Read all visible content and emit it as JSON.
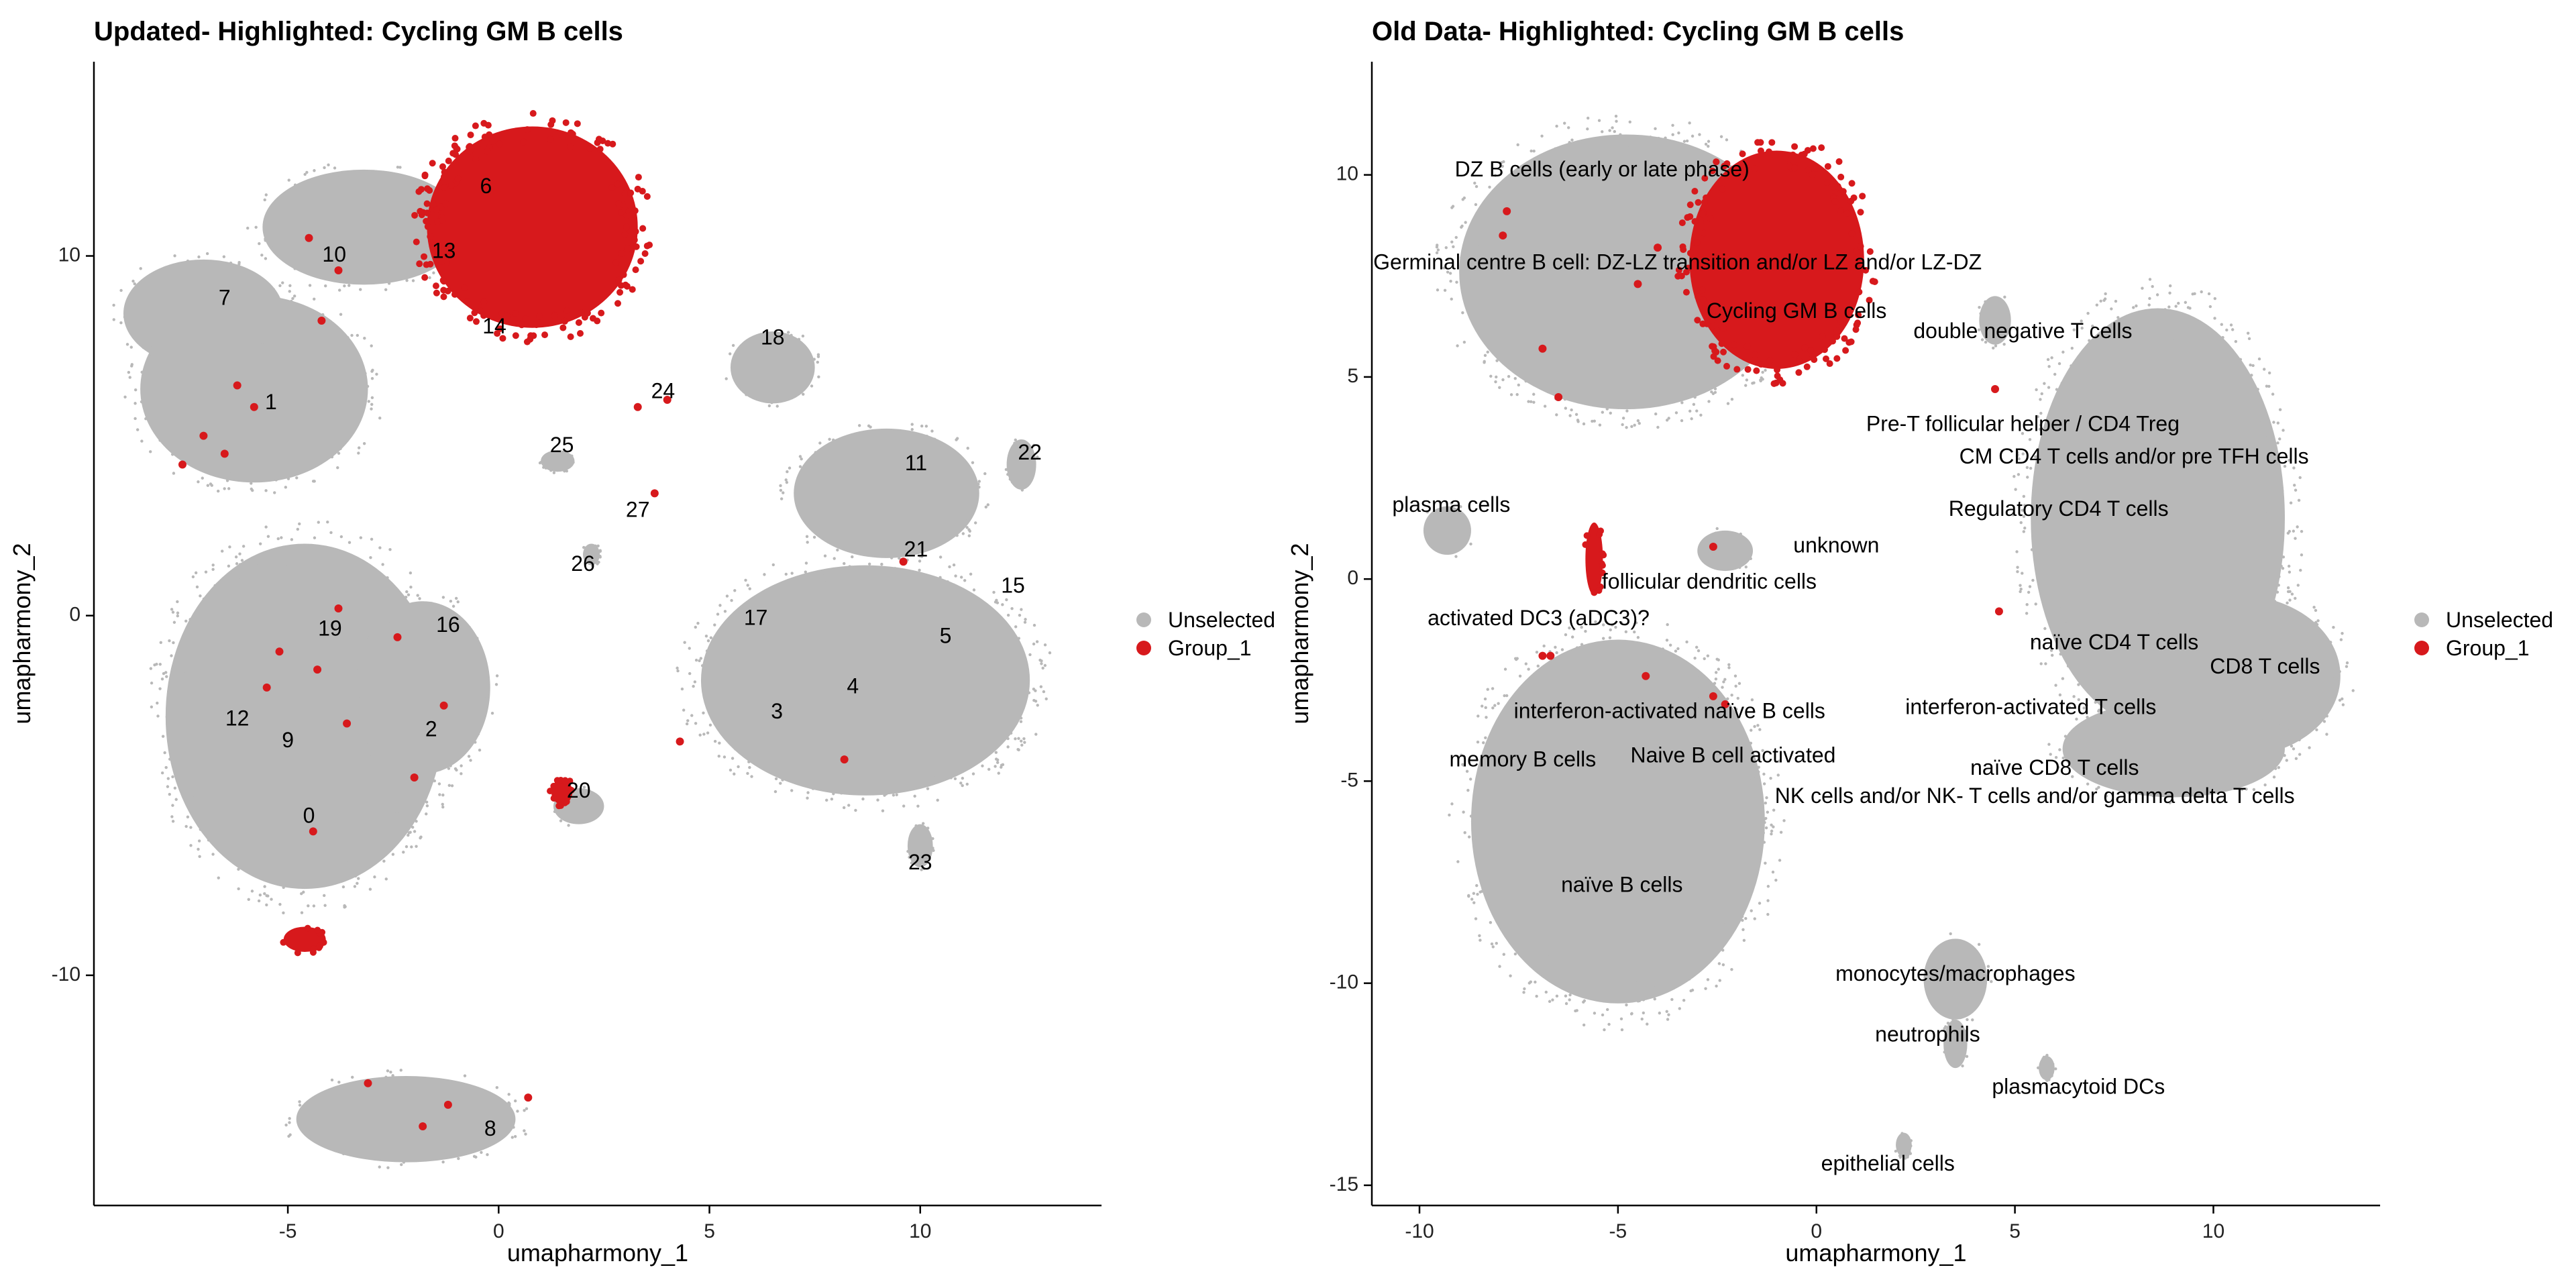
{
  "colors": {
    "unselected": "#b8b8b8",
    "group": "#d7191c",
    "axis": "#000000",
    "text": "#000000"
  },
  "legend_position": "right",
  "chart_data": [
    {
      "type": "scatter",
      "title": "Updated- Highlighted: Cycling GM B cells",
      "xlabel": "umapharmony_1",
      "ylabel": "umapharmony_2",
      "xlim": [
        -9.6,
        14.3
      ],
      "ylim": [
        -16.4,
        15.4
      ],
      "xticks": [
        -5,
        0,
        5,
        10
      ],
      "yticks": [
        -10,
        0,
        10
      ],
      "grid": false,
      "legend": [
        "Unselected",
        "Group_1"
      ],
      "clusters": [
        {
          "x": -5.8,
          "y": 6.3,
          "rx": 2.7,
          "ry": 2.6,
          "selected": false
        },
        {
          "x": -7.0,
          "y": 8.4,
          "rx": 1.9,
          "ry": 1.5,
          "selected": false
        },
        {
          "x": -3.2,
          "y": 10.8,
          "rx": 2.4,
          "ry": 1.6,
          "selected": false
        },
        {
          "x": -4.6,
          "y": -2.8,
          "rx": 3.3,
          "ry": 4.8,
          "selected": false
        },
        {
          "x": -1.8,
          "y": -2.0,
          "rx": 1.6,
          "ry": 2.4,
          "selected": false
        },
        {
          "x": -2.2,
          "y": -14.0,
          "rx": 2.6,
          "ry": 1.2,
          "selected": false
        },
        {
          "x": 8.7,
          "y": -1.8,
          "rx": 3.9,
          "ry": 3.2,
          "selected": false
        },
        {
          "x": 9.2,
          "y": 3.4,
          "rx": 2.2,
          "ry": 1.8,
          "selected": false
        },
        {
          "x": 6.5,
          "y": 6.9,
          "rx": 1.0,
          "ry": 1.0,
          "selected": false
        },
        {
          "x": 12.4,
          "y": 4.2,
          "rx": 0.35,
          "ry": 0.7,
          "selected": false
        },
        {
          "x": 10.0,
          "y": -6.4,
          "rx": 0.3,
          "ry": 0.6,
          "selected": false
        },
        {
          "x": 1.9,
          "y": -5.3,
          "rx": 0.6,
          "ry": 0.5,
          "selected": false
        },
        {
          "x": 1.4,
          "y": 4.3,
          "rx": 0.4,
          "ry": 0.3,
          "selected": false
        },
        {
          "x": 2.2,
          "y": 1.7,
          "rx": 0.2,
          "ry": 0.3,
          "selected": false
        },
        {
          "x": 0.8,
          "y": 10.8,
          "rx": 2.5,
          "ry": 2.8,
          "selected": true
        },
        {
          "x": -4.6,
          "y": -9.0,
          "rx": 0.5,
          "ry": 0.35,
          "selected": true
        },
        {
          "x": 1.5,
          "y": -4.9,
          "rx": 0.25,
          "ry": 0.35,
          "selected": true
        }
      ],
      "labels": [
        {
          "text": "0",
          "x": -4.5,
          "y": -5.6
        },
        {
          "text": "1",
          "x": -5.4,
          "y": 5.9
        },
        {
          "text": "2",
          "x": -1.6,
          "y": -3.2
        },
        {
          "text": "3",
          "x": 6.6,
          "y": -2.7
        },
        {
          "text": "4",
          "x": 8.4,
          "y": -2.0
        },
        {
          "text": "5",
          "x": 10.6,
          "y": -0.6
        },
        {
          "text": "6",
          "x": -0.3,
          "y": 11.9
        },
        {
          "text": "7",
          "x": -6.5,
          "y": 8.8
        },
        {
          "text": "8",
          "x": -0.2,
          "y": -14.3
        },
        {
          "text": "9",
          "x": -5.0,
          "y": -3.5
        },
        {
          "text": "10",
          "x": -3.9,
          "y": 10.0
        },
        {
          "text": "12",
          "x": -6.2,
          "y": -2.9
        },
        {
          "text": "11",
          "x": 9.9,
          "y": 4.2
        },
        {
          "text": "13",
          "x": -1.3,
          "y": 10.1
        },
        {
          "text": "14",
          "x": -0.1,
          "y": 8.0
        },
        {
          "text": "15",
          "x": 12.2,
          "y": 0.8
        },
        {
          "text": "16",
          "x": -1.2,
          "y": -0.3
        },
        {
          "text": "17",
          "x": 6.1,
          "y": -0.1
        },
        {
          "text": "18",
          "x": 6.5,
          "y": 7.7
        },
        {
          "text": "19",
          "x": -4.0,
          "y": -0.4
        },
        {
          "text": "20",
          "x": 1.9,
          "y": -4.9
        },
        {
          "text": "21",
          "x": 9.9,
          "y": 1.8
        },
        {
          "text": "22",
          "x": 12.6,
          "y": 4.5
        },
        {
          "text": "23",
          "x": 10.0,
          "y": -6.9
        },
        {
          "text": "24",
          "x": 3.9,
          "y": 6.2
        },
        {
          "text": "25",
          "x": 1.5,
          "y": 4.7
        },
        {
          "text": "26",
          "x": 2.0,
          "y": 1.4
        },
        {
          "text": "27",
          "x": 3.3,
          "y": 2.9
        }
      ]
    },
    {
      "type": "scatter",
      "title": "Old Data- Highlighted: Cycling GM B cells",
      "xlabel": "umapharmony_1",
      "ylabel": "umapharmony_2",
      "xlim": [
        -11.2,
        14.2
      ],
      "ylim": [
        -15.5,
        12.8
      ],
      "xticks": [
        -10,
        -5,
        0,
        5,
        10
      ],
      "yticks": [
        -15,
        -10,
        -5,
        0,
        5,
        10
      ],
      "grid": false,
      "legend": [
        "Unselected",
        "Group_1"
      ],
      "clusters": [
        {
          "x": -4.8,
          "y": 7.6,
          "rx": 4.2,
          "ry": 3.4,
          "selected": false
        },
        {
          "x": -5.0,
          "y": -6.0,
          "rx": 3.7,
          "ry": 4.5,
          "selected": false
        },
        {
          "x": 8.6,
          "y": 1.5,
          "rx": 3.2,
          "ry": 5.2,
          "selected": false
        },
        {
          "x": 10.6,
          "y": -2.4,
          "rx": 2.6,
          "ry": 2.0,
          "selected": false
        },
        {
          "x": 9.0,
          "y": -4.2,
          "rx": 2.8,
          "ry": 1.2,
          "selected": false
        },
        {
          "x": -9.3,
          "y": 1.2,
          "rx": 0.6,
          "ry": 0.6,
          "selected": false
        },
        {
          "x": -2.3,
          "y": 0.7,
          "rx": 0.7,
          "ry": 0.5,
          "selected": false
        },
        {
          "x": 3.5,
          "y": -9.9,
          "rx": 0.8,
          "ry": 1.0,
          "selected": false
        },
        {
          "x": 3.5,
          "y": -11.5,
          "rx": 0.3,
          "ry": 0.6,
          "selected": false
        },
        {
          "x": 5.8,
          "y": -12.1,
          "rx": 0.2,
          "ry": 0.3,
          "selected": false
        },
        {
          "x": 2.2,
          "y": -14.0,
          "rx": 0.2,
          "ry": 0.3,
          "selected": false
        },
        {
          "x": 4.5,
          "y": 6.4,
          "rx": 0.4,
          "ry": 0.6,
          "selected": false
        },
        {
          "x": -1.0,
          "y": 7.9,
          "rx": 2.2,
          "ry": 2.7,
          "selected": true
        },
        {
          "x": -5.6,
          "y": 0.5,
          "rx": 0.22,
          "ry": 0.9,
          "selected": true
        }
      ],
      "labels": [
        {
          "text": "DZ B cells (early or late phase)",
          "x": -5.4,
          "y": 10.1
        },
        {
          "text": "Germinal centre B cell: DZ-LZ transition and/or LZ and/or LZ-DZ",
          "x": -3.5,
          "y": 7.8
        },
        {
          "text": "Cycling GM B cells",
          "x": -0.5,
          "y": 6.6
        },
        {
          "text": "double negative T cells",
          "x": 5.2,
          "y": 6.1
        },
        {
          "text": "Pre-T follicular helper / CD4 Treg",
          "x": 5.2,
          "y": 3.8
        },
        {
          "text": "CM CD4 T cells  and/or pre TFH cells",
          "x": 8.0,
          "y": 3.0
        },
        {
          "text": "Regulatory CD4 T cells",
          "x": 6.1,
          "y": 1.7
        },
        {
          "text": "plasma cells",
          "x": -9.2,
          "y": 1.8
        },
        {
          "text": "unknown",
          "x": 0.5,
          "y": 0.8
        },
        {
          "text": "follicular dendritic cells",
          "x": -2.7,
          "y": -0.1
        },
        {
          "text": "activated DC3 (aDC3)?",
          "x": -7.0,
          "y": -1.0
        },
        {
          "text": "naïve CD4 T cells",
          "x": 7.5,
          "y": -1.6
        },
        {
          "text": "CD8 T cells",
          "x": 11.3,
          "y": -2.2
        },
        {
          "text": "interferon-activated T cells",
          "x": 5.4,
          "y": -3.2
        },
        {
          "text": "interferon-activated naïve B cells",
          "x": -3.7,
          "y": -3.3
        },
        {
          "text": "memory B cells",
          "x": -7.4,
          "y": -4.5
        },
        {
          "text": "Naive B cell activated",
          "x": -2.1,
          "y": -4.4
        },
        {
          "text": "naïve CD8 T cells",
          "x": 6.0,
          "y": -4.7
        },
        {
          "text": "NK cells and/or NK- T cells and/or gamma delta T cells",
          "x": 5.5,
          "y": -5.4
        },
        {
          "text": "naïve B cells",
          "x": -4.9,
          "y": -7.6
        },
        {
          "text": "monocytes/macrophages",
          "x": 3.5,
          "y": -9.8
        },
        {
          "text": "neutrophils",
          "x": 2.8,
          "y": -11.3
        },
        {
          "text": "plasmacytoid DCs",
          "x": 6.6,
          "y": -12.6
        },
        {
          "text": "epithelial cells",
          "x": 1.8,
          "y": -14.5
        }
      ]
    }
  ]
}
